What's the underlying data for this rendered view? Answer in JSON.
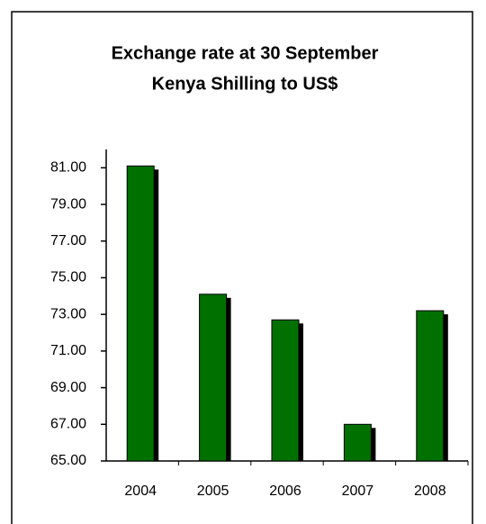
{
  "chart_data": {
    "type": "bar",
    "title": "Exchange rate at 30 September",
    "subtitle": "Kenya Shilling to US$",
    "categories": [
      "2004",
      "2005",
      "2006",
      "2007",
      "2008"
    ],
    "values": [
      81.1,
      74.1,
      72.7,
      67.0,
      73.2
    ],
    "color": "#007000",
    "ylim": [
      65,
      82
    ],
    "yticks": [
      {
        "value": 65,
        "label": "65.00"
      },
      {
        "value": 67,
        "label": "67.00"
      },
      {
        "value": 69,
        "label": "69.00"
      },
      {
        "value": 71,
        "label": "71.00"
      },
      {
        "value": 73,
        "label": "73.00"
      },
      {
        "value": 75,
        "label": "75.00"
      },
      {
        "value": 77,
        "label": "77.00"
      },
      {
        "value": 79,
        "label": "79.00"
      },
      {
        "value": 81,
        "label": "81.00"
      }
    ],
    "grid": false
  }
}
